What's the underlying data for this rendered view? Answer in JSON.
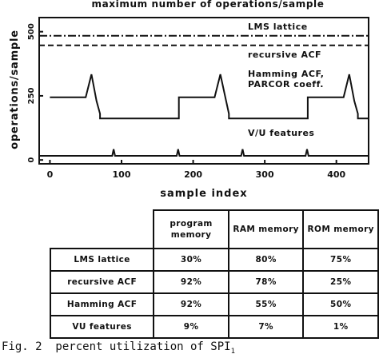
{
  "chart_data": {
    "type": "line",
    "title": "maximum number of operations/sample",
    "x_label": "sample index",
    "y_label": "operations/sample",
    "xlim": [
      -15,
      445
    ],
    "xticks": [
      0,
      100,
      200,
      300,
      400
    ],
    "ylim": [
      -15,
      555
    ],
    "yticks": [
      0,
      250,
      500
    ],
    "series": [
      {
        "name": "LMS lattice",
        "color": "#111111",
        "dash": "10 3 2 3",
        "x": [
          -15,
          445
        ],
        "values": [
          484,
          484
        ]
      },
      {
        "name": "recursive ACF",
        "color": "#111111",
        "dash": "7 4",
        "x": [
          -15,
          445
        ],
        "values": [
          447,
          447
        ]
      },
      {
        "name": "Hamming ACF, PARCOR coeff.",
        "color": "#111111",
        "dash": "none",
        "x": [
          0,
          50,
          58,
          65,
          70,
          70,
          180,
          180,
          230,
          238,
          246,
          250,
          250,
          360,
          360,
          410,
          418,
          425,
          430,
          430,
          445
        ],
        "values": [
          244,
          244,
          334,
          230,
          180,
          162,
          162,
          244,
          244,
          334,
          230,
          180,
          162,
          162,
          244,
          244,
          334,
          230,
          180,
          162,
          162
        ]
      },
      {
        "name": "V/U features",
        "color": "#111111",
        "dash": "none",
        "x": [
          -15,
          87,
          89,
          91,
          177,
          179,
          181,
          267,
          269,
          271,
          357,
          359,
          361,
          445
        ],
        "values": [
          16,
          16,
          42,
          16,
          16,
          42,
          16,
          16,
          42,
          16,
          16,
          42,
          16,
          16
        ]
      }
    ]
  },
  "table": {
    "columns": [
      "program memory",
      "RAM memory",
      "ROM memory"
    ],
    "rows": [
      {
        "label": "LMS lattice",
        "cells": [
          "30%",
          "80%",
          "75%"
        ]
      },
      {
        "label": "recursive ACF",
        "cells": [
          "92%",
          "78%",
          "25%"
        ]
      },
      {
        "label": "Hamming ACF",
        "cells": [
          "92%",
          "55%",
          "50%"
        ]
      },
      {
        "label": "VU features",
        "cells": [
          "9%",
          "7%",
          "1%"
        ]
      }
    ]
  },
  "caption": {
    "text": "Fig. 2  percent utilization of SPI",
    "subscript": "1"
  }
}
